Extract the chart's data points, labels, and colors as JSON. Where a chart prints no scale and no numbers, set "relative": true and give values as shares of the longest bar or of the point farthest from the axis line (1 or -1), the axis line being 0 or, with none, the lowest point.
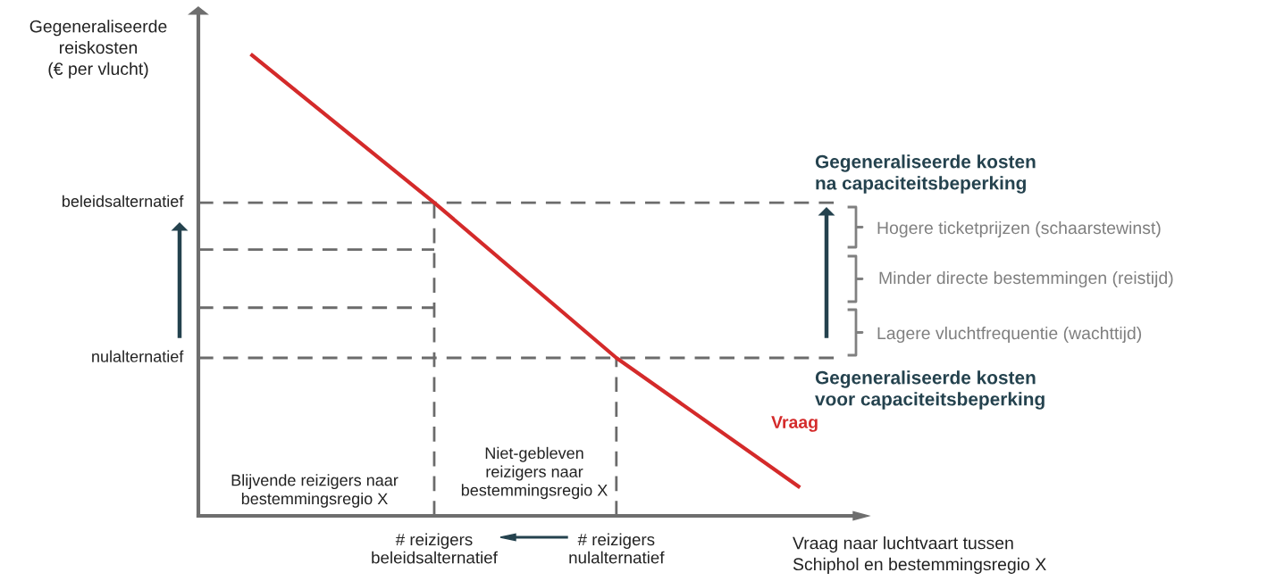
{
  "chart_data": {
    "type": "line",
    "relative": true,
    "ylabel": "Gegeneraliseerde\nreiskosten\n(€ per vlucht)",
    "xlabel": "Vraag naar luchtvaart tussen\nSchiphol en bestemmingsregio X",
    "categories": [
      null,
      "# reizigers\nbeleidsalternatief",
      "# reizigers\nnulalternatief",
      null
    ],
    "series": [
      {
        "name": "Vraag",
        "color": "#d42a2a",
        "values": [
          1.0,
          0.68,
          0.343,
          0.064
        ]
      }
    ],
    "ref_lines": [
      {
        "axis": "y",
        "value": 0.68,
        "label": "beleidsalternatief",
        "color": "#6b6b6b",
        "line_style": "dashed"
      },
      {
        "axis": "y",
        "value": 0.578,
        "color": "#6b6b6b",
        "line_style": "dashed"
      },
      {
        "axis": "y",
        "value": 0.452,
        "color": "#6b6b6b",
        "line_style": "dashed"
      },
      {
        "axis": "y",
        "value": 0.343,
        "label": "nulalternatief",
        "color": "#6b6b6b",
        "line_style": "dashed"
      }
    ],
    "annotations": [
      "Blijvende reizigers naar\nbestemmingsregio X",
      "Niet-gebleven\nreizigers naar\nbestemmingsregio X",
      "Gegeneraliseerde kosten\nna capaciteitsbeperking",
      "Gegeneraliseerde kosten\nvoor capaciteitsbeperking",
      "Hogere ticketprijzen (schaarstewinst)",
      "Minder directe bestemmingen (reistijd)",
      "Lagere vluchtfrequentie (wachttijd)"
    ],
    "grid": false,
    "legend": false,
    "line_style": "solid",
    "marker": "none"
  }
}
